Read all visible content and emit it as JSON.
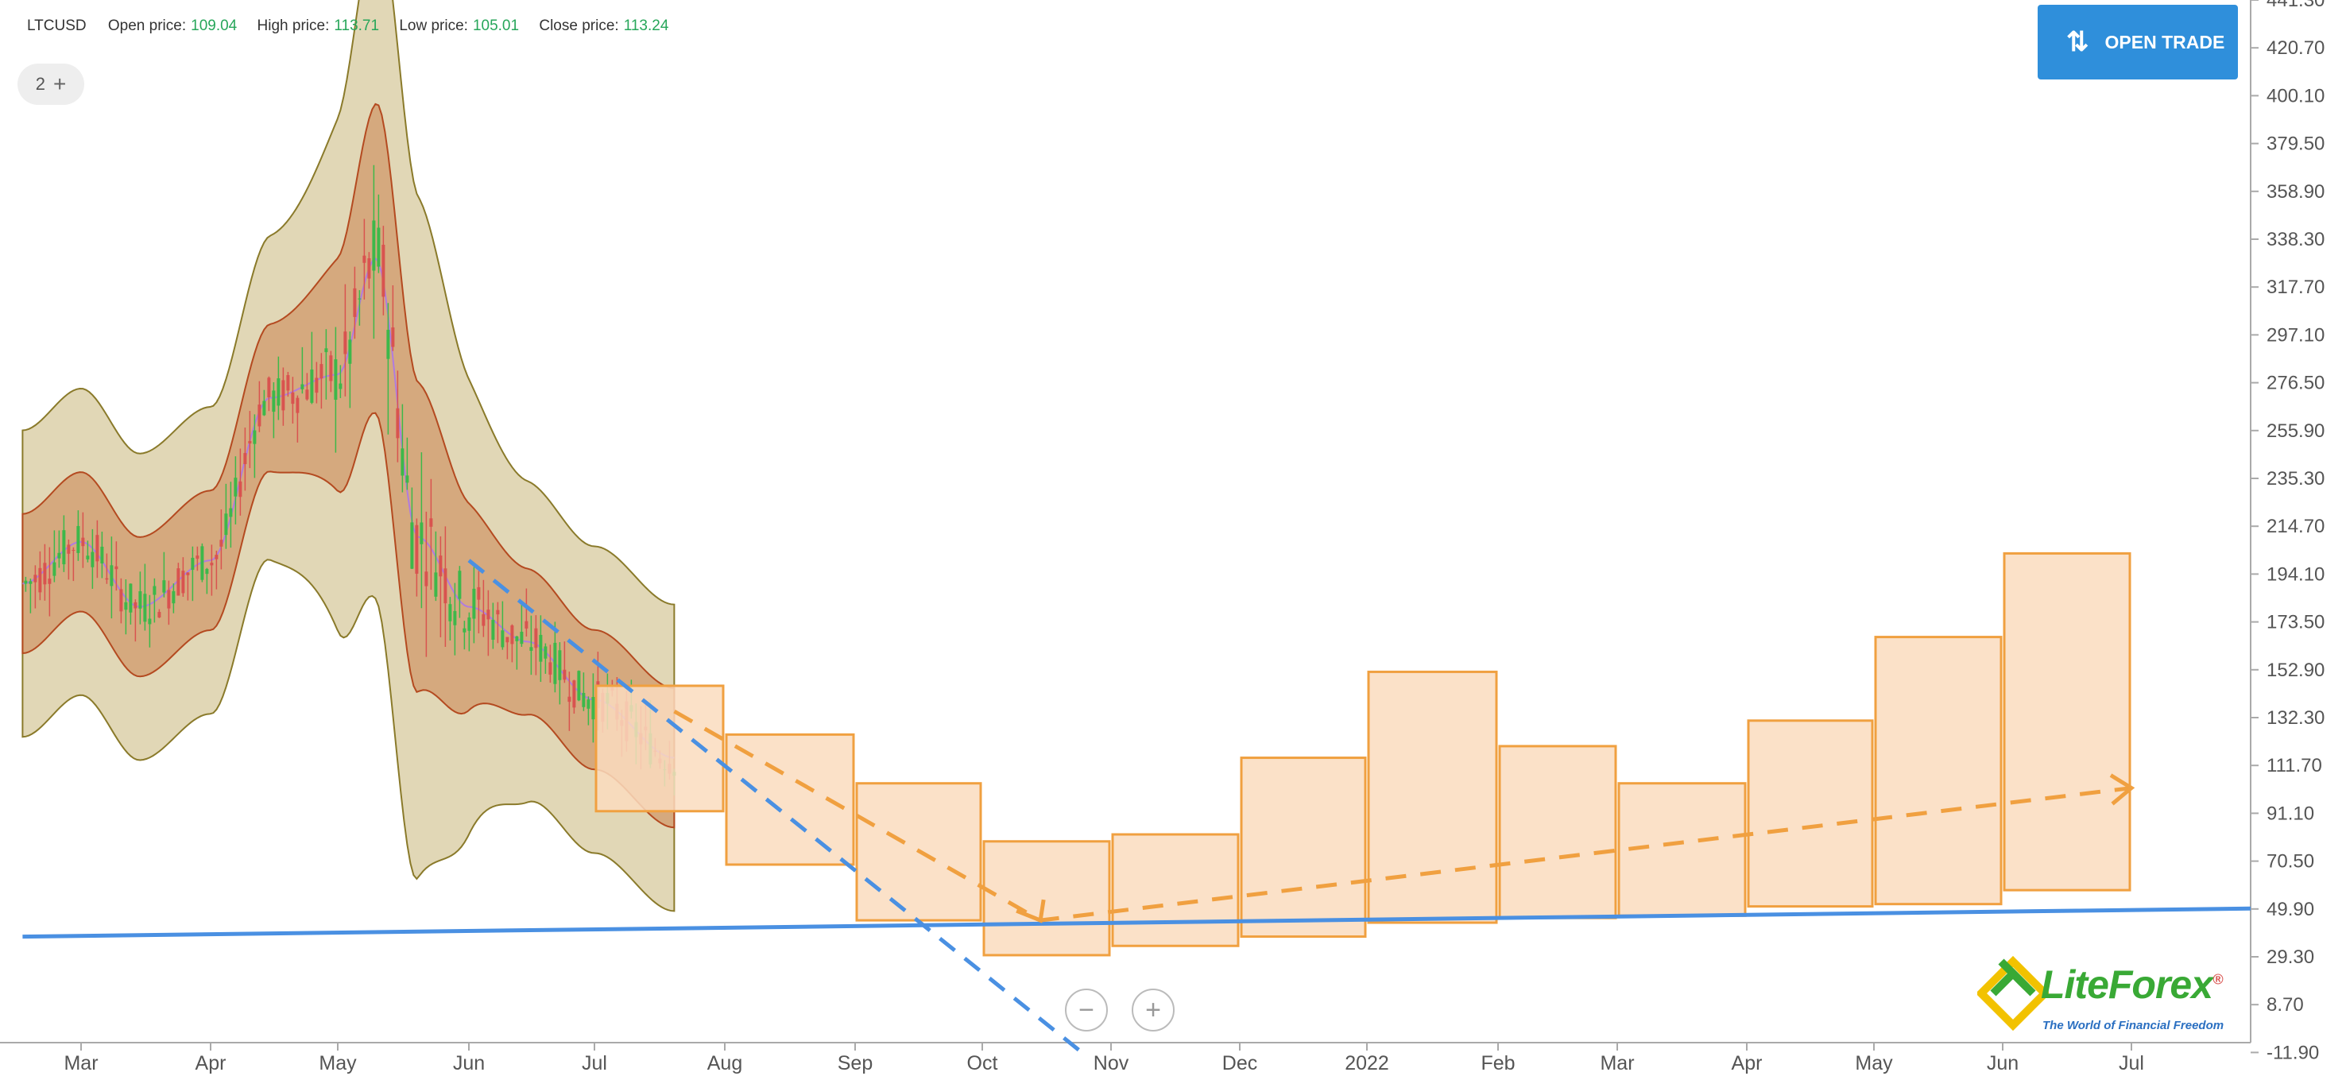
{
  "header": {
    "symbol": "LTCUSD",
    "open_label": "Open price:",
    "open_value": "109.04",
    "high_label": "High price:",
    "high_value": "113.71",
    "low_label": "Low price:",
    "low_value": "105.01",
    "close_label": "Close price:",
    "close_value": "113.24"
  },
  "layers": {
    "count": "2",
    "plus": "+"
  },
  "trade_button": {
    "label": "OPEN TRADE",
    "icon": "up-down-arrows-icon"
  },
  "zoom": {
    "minus": "−",
    "plus": "+"
  },
  "logo": {
    "name": "LiteForex",
    "registered": "®",
    "tagline": "The World of Financial Freedom"
  },
  "colors": {
    "up": "#3db84a",
    "down": "#d9534f",
    "outer_band": "#c9b77a",
    "inner_band": "#c8703a",
    "forecast": "#f0a040",
    "forecast_fill": "#fadcbe",
    "trend": "#4a90e2"
  },
  "chart_data": {
    "type": "candlestick",
    "symbol": "LTCUSD",
    "y_axis_ticks": [
      "441.30",
      "420.70",
      "400.10",
      "379.50",
      "358.90",
      "338.30",
      "317.70",
      "297.10",
      "276.50",
      "255.90",
      "235.30",
      "214.70",
      "194.10",
      "173.50",
      "152.90",
      "132.30",
      "111.70",
      "91.10",
      "70.50",
      "49.90",
      "29.30",
      "8.70",
      "-11.90"
    ],
    "x_axis_ticks": [
      "Mar",
      "Apr",
      "May",
      "Jun",
      "Jul",
      "Aug",
      "Sep",
      "Oct",
      "Nov",
      "Dec",
      "2022",
      "Feb",
      "Mar",
      "Apr",
      "May",
      "Jun",
      "Jul"
    ],
    "ylim": [
      -11.9,
      441.3
    ],
    "historical_price_path": [
      {
        "date": "2021-02-15",
        "price": 190
      },
      {
        "date": "2021-03-01",
        "price": 208
      },
      {
        "date": "2021-03-15",
        "price": 180
      },
      {
        "date": "2021-04-01",
        "price": 200
      },
      {
        "date": "2021-04-15",
        "price": 270
      },
      {
        "date": "2021-05-01",
        "price": 280
      },
      {
        "date": "2021-05-10",
        "price": 330
      },
      {
        "date": "2021-05-20",
        "price": 210
      },
      {
        "date": "2021-06-01",
        "price": 180
      },
      {
        "date": "2021-06-15",
        "price": 165
      },
      {
        "date": "2021-07-01",
        "price": 140
      },
      {
        "date": "2021-07-20",
        "price": 115
      }
    ],
    "forecast_boxes": [
      {
        "month": "2021-07",
        "low": 92,
        "high": 146
      },
      {
        "month": "2021-08",
        "low": 69,
        "high": 125
      },
      {
        "month": "2021-09",
        "low": 45,
        "high": 104
      },
      {
        "month": "2021-10",
        "low": 30,
        "high": 79
      },
      {
        "month": "2021-11",
        "low": 34,
        "high": 82
      },
      {
        "month": "2021-12",
        "low": 38,
        "high": 115
      },
      {
        "month": "2022-01",
        "low": 44,
        "high": 152
      },
      {
        "month": "2022-02",
        "low": 46,
        "high": 120
      },
      {
        "month": "2022-03",
        "low": 47,
        "high": 104
      },
      {
        "month": "2022-04",
        "low": 51,
        "high": 131
      },
      {
        "month": "2022-05",
        "low": 52,
        "high": 167
      },
      {
        "month": "2022-06",
        "low": 58,
        "high": 203
      }
    ],
    "forecast_path": [
      {
        "date": "2021-07-20",
        "price": 135
      },
      {
        "date": "2021-10-15",
        "price": 45
      },
      {
        "date": "2022-07-01",
        "price": 102
      }
    ],
    "support_line": [
      {
        "date": "2021-02-15",
        "price": 38
      },
      {
        "date": "2022-07-25",
        "price": 50
      }
    ],
    "down_trend_line": [
      {
        "date": "2021-06-01",
        "price": 200
      },
      {
        "date": "2021-10-25",
        "price": -11.9
      }
    ]
  }
}
